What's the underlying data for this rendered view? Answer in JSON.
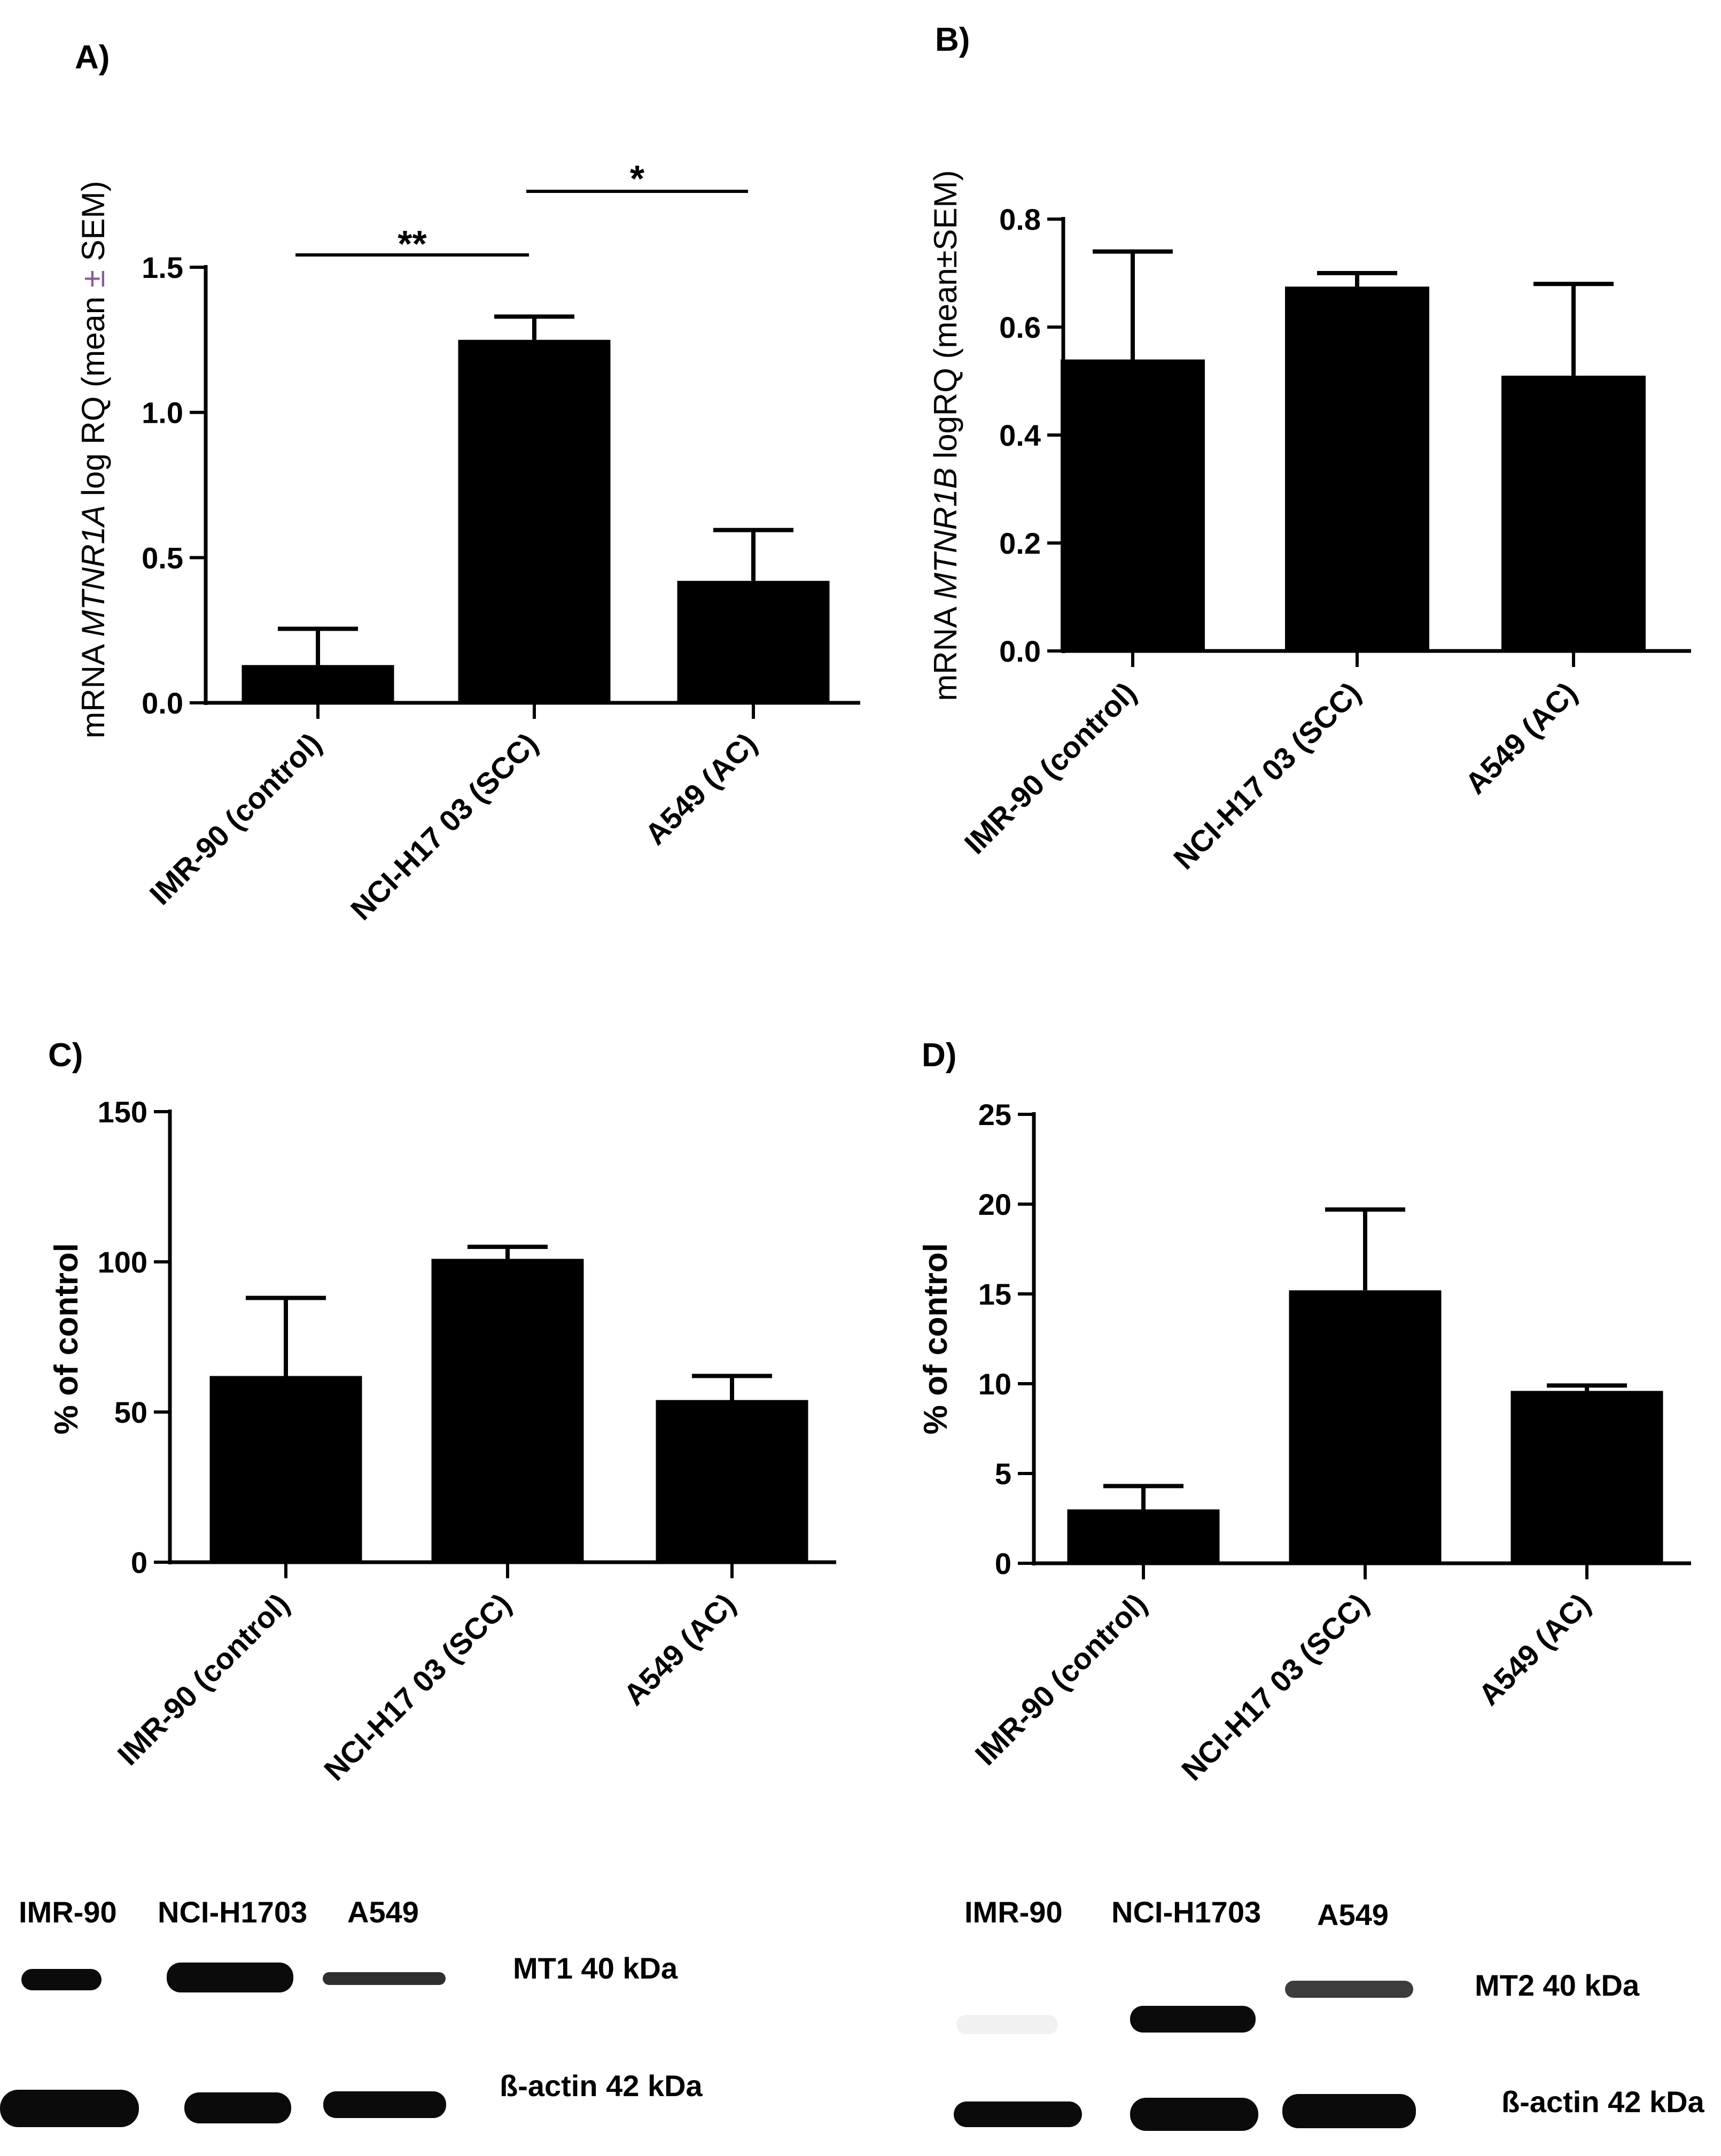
{
  "chart_data": [
    {
      "panel": "A)",
      "type": "bar",
      "categories": [
        "IMR-90 (control)",
        "NCI-H17 03 (SCC)",
        "A549 (AC)"
      ],
      "values": [
        0.13,
        1.25,
        0.42
      ],
      "errors": [
        0.125,
        0.08,
        0.175
      ],
      "ylabel_pre": "mRNA ",
      "ylabel_gene": "MTNR1A",
      "ylabel_post": " log RQ (mean ",
      "ylabel_pm": "±",
      "ylabel_end": " SEM)",
      "ylim": [
        0,
        1.5
      ],
      "yticks": [
        "0.0",
        "0.5",
        "1.0",
        "1.5"
      ],
      "tick_values": [
        0,
        0.5,
        1.0,
        1.5
      ],
      "significance": [
        {
          "from": 0,
          "to": 1,
          "label": "**"
        },
        {
          "from": 1,
          "to": 2,
          "label": "*"
        }
      ]
    },
    {
      "panel": "B)",
      "type": "bar",
      "categories": [
        "IMR-90 (control)",
        "NCI-H17 03 (SCC)",
        "A549 (AC)"
      ],
      "values": [
        0.54,
        0.675,
        0.51
      ],
      "errors": [
        0.2,
        0.025,
        0.17
      ],
      "ylabel_pre": "mRNA ",
      "ylabel_gene": "MTNR1B",
      "ylabel_post": " logRQ (mean",
      "ylabel_pm": "±",
      "ylabel_end": "SEM)",
      "ylim": [
        0,
        0.8
      ],
      "yticks": [
        "0.0",
        "0.2",
        "0.4",
        "0.6",
        "0.8"
      ],
      "tick_values": [
        0,
        0.2,
        0.4,
        0.6,
        0.8
      ]
    },
    {
      "panel": "C)",
      "type": "bar",
      "categories": [
        "IMR-90 (control)",
        "NCI-H17 03 (SCC)",
        "A549 (AC)"
      ],
      "values": [
        62,
        101,
        54
      ],
      "errors": [
        26,
        4,
        8
      ],
      "ylabel": "% of control",
      "ylim": [
        0,
        150
      ],
      "yticks": [
        "0",
        "50",
        "100",
        "150"
      ],
      "tick_values": [
        0,
        50,
        100,
        150
      ]
    },
    {
      "panel": "D)",
      "type": "bar",
      "categories": [
        "IMR-90 (control)",
        "NCI-H17 03 (SCC)",
        "A549 (AC)"
      ],
      "values": [
        3.0,
        15.2,
        9.6
      ],
      "errors": [
        1.3,
        4.5,
        0.3
      ],
      "ylabel": "% of control",
      "ylim": [
        0,
        25
      ],
      "yticks": [
        "0",
        "5",
        "10",
        "15",
        "20",
        "25"
      ],
      "tick_values": [
        0,
        5,
        10,
        15,
        20,
        25
      ]
    }
  ],
  "blots": {
    "left": {
      "lanes": [
        "IMR-90",
        "NCI-H1703",
        "A549"
      ],
      "protein_label": "MT1 40 kDa",
      "actin_label": "ß-actin 42 kDa"
    },
    "right": {
      "lanes": [
        "IMR-90",
        "NCI-H1703",
        "A549"
      ],
      "protein_label": "MT2 40 kDa",
      "actin_label": "ß-actin 42 kDa"
    }
  }
}
